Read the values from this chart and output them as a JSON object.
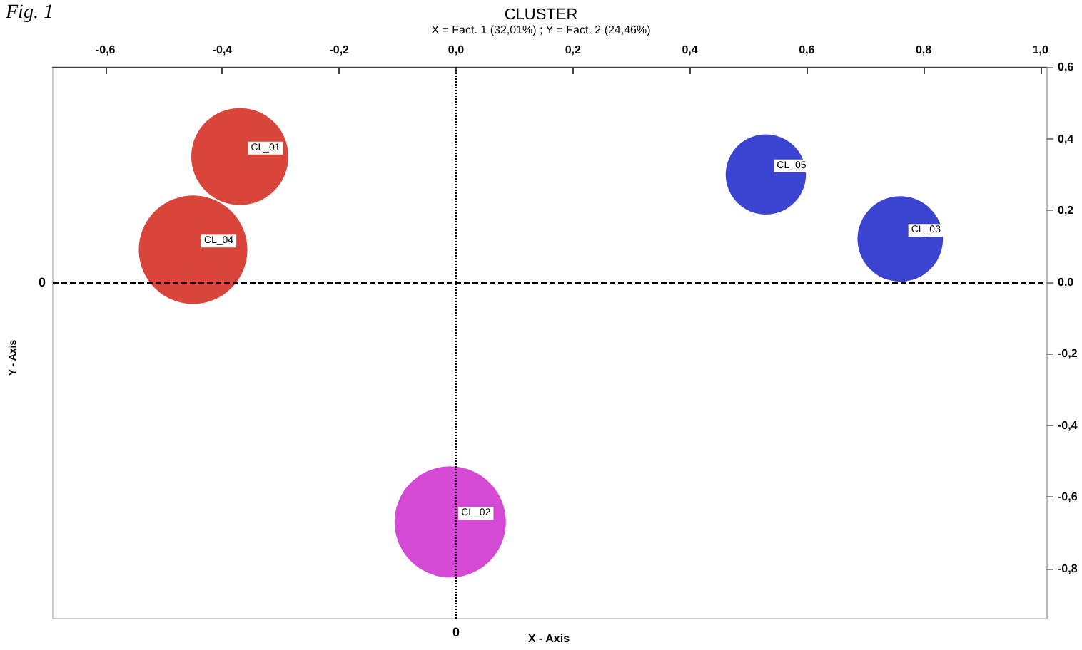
{
  "chart_data": {
    "type": "bubble",
    "title": "CLUSTER",
    "subtitle": "X = Fact. 1 (32,01%) ; Y = Fact. 2 (24,46%)",
    "xlabel": "X - Axis",
    "ylabel": "Y - Axis",
    "annotations": [
      "Fig. 1"
    ],
    "series": [
      {
        "name": "CL_01",
        "color": "#d9453a",
        "x": [
          -0.37
        ],
        "values": [
          0.35
        ],
        "sizes": [
          0.76
        ]
      },
      {
        "name": "CL_04",
        "color": "#d9453a",
        "x": [
          -0.45
        ],
        "values": [
          0.09
        ],
        "sizes": [
          0.95
        ]
      },
      {
        "name": "CL_05",
        "color": "#3a44d0",
        "x": [
          0.53
        ],
        "values": [
          0.3
        ],
        "sizes": [
          0.52
        ]
      },
      {
        "name": "CL_03",
        "color": "#3a44d0",
        "x": [
          0.76
        ],
        "values": [
          0.12
        ],
        "sizes": [
          0.59
        ]
      },
      {
        "name": "CL_02",
        "color": "#d44ad4",
        "x": [
          -0.01
        ],
        "values": [
          -0.67
        ],
        "sizes": [
          1
        ]
      }
    ],
    "xlim": [
      -0.69,
      1.01
    ],
    "ylim": [
      -0.94,
      0.6
    ],
    "xticks": [
      {
        "value": -0.6,
        "label": "-0,6"
      },
      {
        "value": -0.4,
        "label": "-0,4"
      },
      {
        "value": -0.2,
        "label": "-0,2"
      },
      {
        "value": 0,
        "label": "0,0"
      },
      {
        "value": 0.2,
        "label": "0,2"
      },
      {
        "value": 0.4,
        "label": "0,4"
      },
      {
        "value": 0.6,
        "label": "0,6"
      },
      {
        "value": 0.8,
        "label": "0,8"
      },
      {
        "value": 1.0,
        "label": "1,0"
      }
    ],
    "yticks": [
      {
        "value": 0.6,
        "label": "0,6"
      },
      {
        "value": 0.4,
        "label": "0,4"
      },
      {
        "value": 0.2,
        "label": "0,2"
      },
      {
        "value": 0,
        "label": "0,0"
      },
      {
        "value": -0.2,
        "label": "-0,2"
      },
      {
        "value": -0.4,
        "label": "-0,4"
      },
      {
        "value": -0.6,
        "label": "-0,6"
      },
      {
        "value": -0.8,
        "label": "-0,8"
      }
    ],
    "ref_lines": [
      {
        "axis": "x",
        "value": 0,
        "label": "0",
        "color": "#000000",
        "line_style": "dotted"
      },
      {
        "axis": "y",
        "value": 0,
        "label": "0",
        "color": "#000000",
        "line_style": "dashed"
      }
    ],
    "grid": false,
    "legend": false,
    "marker": "circle"
  }
}
